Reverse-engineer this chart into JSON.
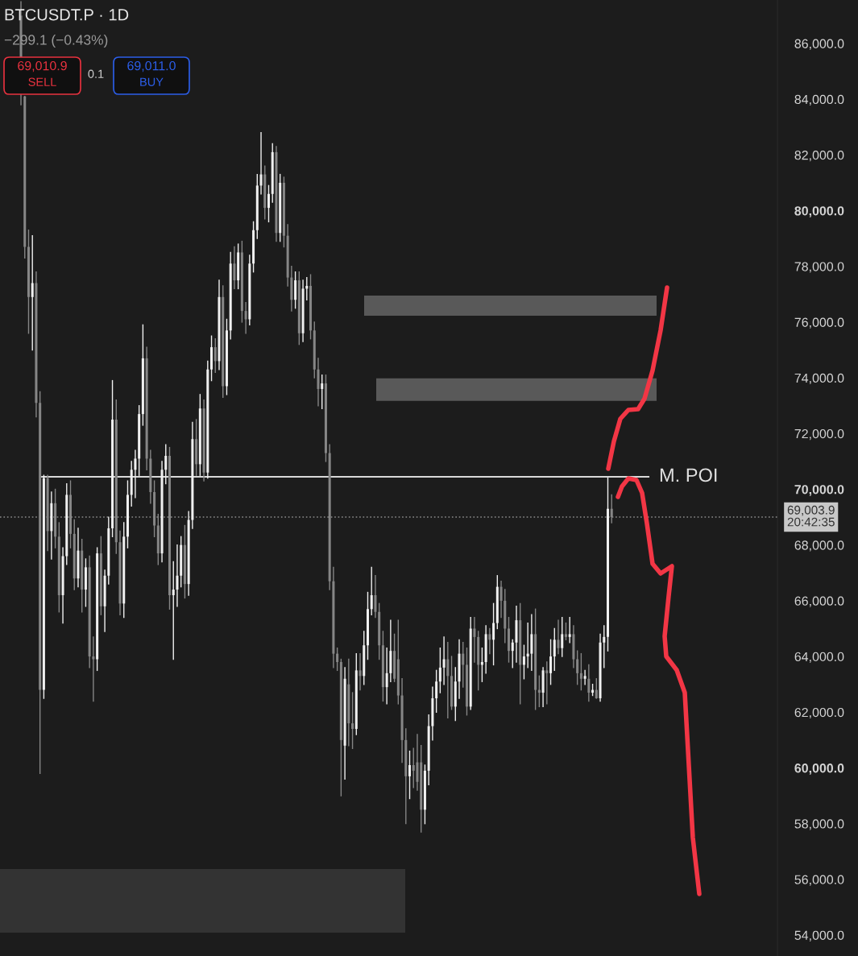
{
  "chart_data": {
    "type": "candlestick",
    "title": "BTCUSDT.P · 1D",
    "subtitle": "−299.1 (−0.43%)",
    "annotations": [
      "69,010.9",
      "SELL",
      "0.1",
      "69,011.0",
      "BUY"
    ],
    "categories": [
      null,
      null,
      null,
      null,
      null,
      null,
      null,
      null,
      null,
      null,
      null,
      null,
      null,
      null,
      null,
      null,
      null,
      null,
      null,
      null,
      null,
      null,
      null,
      null,
      null,
      null,
      null,
      null,
      null,
      null,
      null,
      null,
      null,
      null,
      null,
      null,
      null,
      null,
      null,
      null,
      null,
      null,
      null,
      null,
      null,
      null,
      null,
      null,
      null,
      null,
      null,
      null,
      null,
      null,
      null,
      null,
      null,
      null,
      null,
      null,
      null,
      null,
      null,
      null,
      null,
      null,
      null,
      null,
      null,
      null,
      null,
      null,
      null,
      null,
      null,
      null,
      null,
      null,
      null,
      null,
      null,
      null,
      null,
      null,
      null,
      null,
      null,
      null,
      null,
      null,
      null,
      null,
      null,
      null,
      null,
      null,
      null,
      null,
      null,
      null,
      null,
      null,
      null,
      null,
      null,
      null,
      null,
      null,
      null,
      null,
      null,
      null,
      null,
      null,
      null,
      null,
      null,
      null,
      null,
      null,
      null,
      null,
      null,
      null,
      null,
      null,
      null,
      null,
      null,
      null,
      null,
      null,
      null,
      null,
      null,
      null,
      null,
      null,
      null,
      null,
      null,
      null,
      null,
      null,
      null,
      null,
      null,
      null,
      null,
      null,
      null,
      null,
      null,
      null,
      null,
      null,
      null,
      null,
      null,
      null,
      null,
      null,
      null,
      null,
      null,
      null,
      null,
      null,
      null,
      null,
      null,
      null,
      null,
      null,
      null,
      null,
      null,
      null,
      null,
      null,
      null,
      null,
      null,
      null,
      null,
      null,
      null,
      null,
      null,
      null,
      null,
      null,
      null,
      null,
      null,
      null,
      null,
      null,
      null,
      null,
      null,
      null,
      null,
      null
    ],
    "colors": [
      null,
      null,
      null,
      null,
      null,
      "#868686",
      "#868686",
      "#868686",
      "#f0f0f0",
      "#868686",
      "#868686",
      "#f0f0f0",
      "#868686",
      "#f0f0f0",
      "#868686",
      "#868686",
      "#f0f0f0",
      "#f0f0f0",
      "#868686",
      "#868686",
      "#f0f0f0",
      "#868686",
      "#f0f0f0",
      "#868686",
      "#868686",
      "#f0f0f0",
      "#868686",
      "#f0f0f0",
      "#f0f0f0",
      "#f0f0f0",
      "#868686",
      "#868686",
      "#f0f0f0",
      "#f0f0f0",
      "#f0f0f0",
      "#f0f0f0",
      "#f0f0f0",
      "#f0f0f0",
      "#868686",
      "#868686",
      "#868686",
      "#868686",
      "#f0f0f0",
      "#f0f0f0",
      "#868686",
      "#f0f0f0",
      "#f0f0f0",
      "#f0f0f0",
      "#868686",
      "#f0f0f0",
      "#f0f0f0",
      "#868686",
      "#f0f0f0",
      "#868686",
      "#f0f0f0",
      "#f0f0f0",
      "#868686",
      "#f0f0f0",
      "#868686",
      "#f0f0f0",
      "#f0f0f0",
      "#868686",
      "#f0f0f0",
      "#868686",
      "#868686",
      "#f0f0f0",
      "#f0f0f0",
      "#f0f0f0",
      "#f0f0f0",
      "#868686",
      "#f0f0f0",
      "#f0f0f0",
      "#868686",
      "#f0f0f0",
      "#868686",
      "#868686",
      "#868686",
      "#f0f0f0",
      "#868686",
      "#f0f0f0",
      "#f0f0f0",
      "#868686",
      "#868686",
      "#868686",
      "#f0f0f0",
      "#868686",
      "#868686",
      "#868686",
      "#868686",
      "#868686",
      "#f0f0f0",
      "#868686",
      "#868686",
      "#f0f0f0",
      "#868686",
      "#f0f0f0",
      "#f0f0f0",
      "#f0f0f0",
      "#868686",
      "#868686",
      "#868686",
      "#f0f0f0",
      "#f0f0f0",
      "#868686",
      "#868686",
      "#868686",
      "#868686",
      "#f0f0f0",
      "#868686",
      "#868686",
      "#868686",
      "#f0f0f0",
      "#f0f0f0",
      "#f0f0f0",
      "#f0f0f0",
      "#f0f0f0",
      "#f0f0f0",
      "#868686",
      "#868686",
      "#f0f0f0",
      "#f0f0f0",
      "#868686",
      "#868686",
      "#f0f0f0",
      "#868686",
      "#868686",
      "#f0f0f0",
      "#f0f0f0",
      "#868686",
      "#f0f0f0",
      "#f0f0f0",
      "#868686",
      "#868686",
      "#868686",
      "#f0f0f0",
      "#f0f0f0",
      "#868686",
      "#f0f0f0",
      "#f0f0f0",
      "#f0f0f0",
      "#868686",
      "#868686",
      "#f0f0f0",
      "#868686",
      "#f0f0f0",
      "#f0f0f0",
      "#868686",
      "#f0f0f0",
      "#868686",
      "#f0f0f0",
      "#868686",
      "#868686",
      "#868686",
      "#f0f0f0",
      "#868686",
      "#f0f0f0",
      "#868686",
      "#f0f0f0",
      "#f0f0f0",
      "#f0f0f0",
      "#868686",
      null,
      null,
      null,
      null,
      null,
      null,
      null,
      null,
      null,
      null,
      null,
      null,
      null,
      null,
      null,
      null,
      null,
      null,
      null,
      null,
      null,
      null,
      null,
      null,
      null,
      null,
      null,
      null,
      null,
      null,
      null,
      null,
      null,
      null,
      null,
      null,
      null,
      null,
      null,
      null,
      null,
      null,
      null
    ],
    "ohlc": [
      null,
      null,
      null,
      null,
      null,
      [
        87000,
        87500,
        83800,
        84200
      ],
      [
        84100,
        84100,
        78300,
        78700
      ],
      [
        78700,
        79300,
        75600,
        76900
      ],
      [
        76900,
        79100,
        75000,
        77400
      ],
      [
        77400,
        77800,
        72600,
        73100
      ],
      [
        73100,
        73500,
        59800,
        62800
      ],
      [
        62800,
        70500,
        62500,
        70400
      ],
      [
        70400,
        70500,
        67800,
        68500
      ],
      [
        68500,
        69900,
        67500,
        69500
      ],
      [
        69500,
        70000,
        67900,
        68300
      ],
      [
        68300,
        68800,
        65600,
        66200
      ],
      [
        66200,
        67900,
        65200,
        67600
      ],
      [
        67600,
        70200,
        67300,
        69800
      ],
      [
        69800,
        70300,
        67900,
        68400
      ],
      [
        68400,
        68900,
        66400,
        66800
      ],
      [
        66800,
        68600,
        66500,
        67800
      ],
      [
        67800,
        68200,
        65600,
        66400
      ],
      [
        66400,
        67500,
        65800,
        67200
      ],
      [
        67200,
        67600,
        63600,
        64000
      ],
      [
        64000,
        64700,
        62400,
        63900
      ],
      [
        63900,
        67900,
        63500,
        67700
      ],
      [
        67700,
        68300,
        65500,
        65800
      ],
      [
        65800,
        67100,
        64900,
        66900
      ],
      [
        66900,
        69000,
        66600,
        68600
      ],
      [
        68600,
        73900,
        68300,
        72500
      ],
      [
        72500,
        73200,
        67700,
        68100
      ],
      [
        68100,
        68500,
        65500,
        65900
      ],
      [
        65900,
        68800,
        65400,
        68300
      ],
      [
        68300,
        70300,
        67900,
        69800
      ],
      [
        69800,
        71000,
        69400,
        70700
      ],
      [
        70700,
        71400,
        69700,
        71100
      ],
      [
        71100,
        73000,
        70500,
        72700
      ],
      [
        72700,
        75900,
        72300,
        74700
      ],
      [
        74700,
        75100,
        70700,
        71100
      ],
      [
        71100,
        71400,
        69500,
        69900
      ],
      [
        69900,
        70300,
        68300,
        68700
      ],
      [
        68700,
        69100,
        67300,
        67700
      ],
      [
        67700,
        71000,
        67400,
        70700
      ],
      [
        70700,
        71600,
        70200,
        71200
      ],
      [
        71200,
        71500,
        65700,
        66200
      ],
      [
        66200,
        67400,
        63900,
        66400
      ],
      [
        66400,
        68000,
        65800,
        66900
      ],
      [
        66900,
        68300,
        66500,
        68000
      ],
      [
        68000,
        68700,
        66100,
        66600
      ],
      [
        66600,
        69200,
        66200,
        68900
      ],
      [
        68900,
        72400,
        68600,
        71800
      ],
      [
        71800,
        72500,
        70500,
        70900
      ],
      [
        70900,
        73400,
        70500,
        72900
      ],
      [
        72900,
        73200,
        70300,
        70600
      ],
      [
        70600,
        74600,
        70400,
        74300
      ],
      [
        74300,
        75500,
        73900,
        75100
      ],
      [
        75100,
        75400,
        74200,
        74600
      ],
      [
        74600,
        77500,
        74300,
        76900
      ],
      [
        76900,
        77300,
        73300,
        73700
      ],
      [
        73700,
        76100,
        73400,
        75700
      ],
      [
        75700,
        78500,
        75400,
        78100
      ],
      [
        78100,
        78700,
        77200,
        77500
      ],
      [
        77500,
        78800,
        77200,
        78500
      ],
      [
        78500,
        78900,
        76000,
        76400
      ],
      [
        76400,
        76700,
        75600,
        76100
      ],
      [
        76100,
        78400,
        75900,
        78100
      ],
      [
        78100,
        79600,
        77800,
        79300
      ],
      [
        79300,
        81300,
        79000,
        80900
      ],
      [
        80900,
        82800,
        80600,
        81300
      ],
      [
        81300,
        81600,
        79700,
        80100
      ],
      [
        80100,
        80900,
        79600,
        80600
      ],
      [
        80600,
        82400,
        80300,
        82100
      ],
      [
        82100,
        82300,
        78900,
        79200
      ],
      [
        79200,
        81300,
        78900,
        81000
      ],
      [
        81000,
        81200,
        78700,
        79100
      ],
      [
        79100,
        79500,
        77300,
        77600
      ],
      [
        77600,
        78000,
        76400,
        76800
      ],
      [
        76800,
        77800,
        76500,
        77500
      ],
      [
        77500,
        77800,
        75200,
        75600
      ],
      [
        75600,
        77500,
        75300,
        77200
      ],
      [
        77200,
        77600,
        76800,
        77300
      ],
      [
        77300,
        77700,
        75400,
        75700
      ],
      [
        75700,
        76000,
        74000,
        74300
      ],
      [
        74300,
        74700,
        73000,
        73600
      ],
      [
        73600,
        74100,
        72900,
        73800
      ],
      [
        73800,
        74100,
        71000,
        71300
      ],
      [
        71300,
        71600,
        66400,
        66700
      ],
      [
        66700,
        67200,
        63600,
        64100
      ],
      [
        64100,
        64300,
        63500,
        63800
      ],
      [
        63800,
        63900,
        59000,
        61000
      ],
      [
        60800,
        63600,
        59600,
        63200
      ],
      [
        63000,
        63900,
        60800,
        61600
      ],
      [
        61600,
        62700,
        60700,
        61400
      ],
      [
        61400,
        64100,
        61200,
        63500
      ],
      [
        63500,
        64100,
        62800,
        63300
      ],
      [
        63300,
        64900,
        63000,
        64400
      ],
      [
        64400,
        66300,
        63900,
        65700
      ],
      [
        65700,
        67200,
        65500,
        66200
      ],
      [
        66200,
        66900,
        65400,
        65600
      ],
      [
        65600,
        65900,
        63900,
        64400
      ],
      [
        64400,
        64900,
        62400,
        62900
      ],
      [
        62900,
        64300,
        62300,
        63400
      ],
      [
        63400,
        65300,
        63100,
        64200
      ],
      [
        64200,
        64800,
        63100,
        63200
      ],
      [
        63900,
        65300,
        62300,
        62600
      ],
      [
        62600,
        63200,
        60200,
        61000
      ],
      [
        61000,
        61400,
        58000,
        59700
      ],
      [
        59700,
        60600,
        58900,
        60100
      ],
      [
        60100,
        60700,
        59300,
        59900
      ],
      [
        60200,
        61200,
        59200,
        59500
      ],
      [
        60200,
        60800,
        57700,
        58500
      ],
      [
        58500,
        60100,
        58000,
        59900
      ],
      [
        59900,
        61900,
        59400,
        61500
      ],
      [
        61500,
        62900,
        61000,
        62500
      ],
      [
        62500,
        63500,
        62000,
        63100
      ],
      [
        63100,
        64300,
        62700,
        63600
      ],
      [
        63600,
        64700,
        63000,
        63900
      ],
      [
        63900,
        64500,
        61800,
        63300
      ],
      [
        63300,
        64000,
        62100,
        62200
      ],
      [
        62200,
        63600,
        61700,
        63100
      ],
      [
        63100,
        64600,
        62500,
        64100
      ],
      [
        64100,
        64500,
        62900,
        63700
      ],
      [
        63700,
        64300,
        61900,
        62200
      ],
      [
        62200,
        65400,
        62100,
        65000
      ],
      [
        65000,
        65400,
        63800,
        64700
      ],
      [
        64700,
        64900,
        62800,
        63700
      ],
      [
        63700,
        64300,
        63100,
        63800
      ],
      [
        63800,
        65100,
        63400,
        64800
      ],
      [
        64800,
        65000,
        64100,
        64600
      ],
      [
        64600,
        65900,
        63700,
        65200
      ],
      [
        65200,
        66900,
        65000,
        66500
      ],
      [
        66500,
        66700,
        65400,
        66000
      ],
      [
        66000,
        66400,
        64500,
        65000
      ],
      [
        65000,
        65400,
        63800,
        64200
      ],
      [
        64200,
        64600,
        63600,
        64500
      ],
      [
        64500,
        65800,
        63800,
        65300
      ],
      [
        65300,
        65900,
        62300,
        63700
      ],
      [
        63700,
        64400,
        63200,
        64000
      ],
      [
        64000,
        65200,
        63600,
        64100
      ],
      [
        64100,
        65500,
        63500,
        64800
      ],
      [
        64800,
        65700,
        62100,
        62800
      ],
      [
        62800,
        63300,
        62200,
        62700
      ],
      [
        62700,
        63600,
        62200,
        63500
      ],
      [
        63500,
        63800,
        62300,
        63400
      ],
      [
        63400,
        64600,
        63000,
        64000
      ],
      [
        64000,
        65000,
        63500,
        64600
      ],
      [
        64600,
        65300,
        64100,
        64300
      ],
      [
        64300,
        65400,
        64000,
        64800
      ],
      [
        64800,
        65200,
        64600,
        64700
      ],
      [
        64700,
        65400,
        64500,
        64800
      ],
      [
        64800,
        65100,
        63600,
        63900
      ],
      [
        63900,
        64200,
        63000,
        63400
      ],
      [
        63400,
        64100,
        62800,
        63200
      ],
      [
        63200,
        63500,
        63000,
        63300
      ],
      [
        63200,
        63700,
        62400,
        62700
      ],
      [
        62700,
        63000,
        62600,
        62800
      ],
      [
        62800,
        63200,
        62500,
        62500
      ],
      [
        62500,
        64800,
        62400,
        64500
      ],
      [
        64500,
        65100,
        63600,
        64700
      ],
      [
        64700,
        70400,
        64200,
        69300
      ],
      [
        69300,
        69800,
        68800,
        69000
      ],
      null,
      null,
      null,
      null,
      null,
      null,
      null,
      null,
      null,
      null,
      null,
      null,
      null,
      null,
      null,
      null,
      null,
      null,
      null,
      null,
      null,
      null,
      null,
      null,
      null,
      null,
      null,
      null,
      null,
      null,
      null,
      null,
      null,
      null,
      null,
      null,
      null,
      null,
      null,
      null,
      null,
      null,
      null
    ],
    "ylim": [
      53250,
      87560
    ],
    "yticks": [
      {
        "value": 54000,
        "label": "54,000.0"
      },
      {
        "value": 56000,
        "label": "56,000.0"
      },
      {
        "value": 58000,
        "label": "58,000.0"
      },
      {
        "value": 60000,
        "label": "60,000.0"
      },
      {
        "value": 62000,
        "label": "62,000.0"
      },
      {
        "value": 64000,
        "label": "64,000.0"
      },
      {
        "value": 66000,
        "label": "66,000.0"
      },
      {
        "value": 68000,
        "label": "68,000.0"
      },
      {
        "value": 70000,
        "label": "70,000.0"
      },
      {
        "value": 72000,
        "label": "72,000.0"
      },
      {
        "value": 74000,
        "label": "74,000.0"
      },
      {
        "value": 76000,
        "label": "76,000.0"
      },
      {
        "value": 78000,
        "label": "78,000.0"
      },
      {
        "value": 80000,
        "label": "80,000.0"
      },
      {
        "value": 82000,
        "label": "82,000.0"
      },
      {
        "value": 84000,
        "label": "84,000.0"
      },
      {
        "value": 86000,
        "label": "86,000.0"
      }
    ],
    "tick_labels": "y",
    "ref_lines": [
      {
        "axis": "y",
        "value": 70450,
        "label": "M. POI",
        "color": "#d9d9d9",
        "line_style": "solid"
      },
      {
        "axis": "y",
        "value": 69003.9,
        "label": "69,003.9\n20:42:35",
        "color": "#8a8a8a",
        "line_style": "dotted"
      }
    ],
    "bands": [
      {
        "axis": "y",
        "from": 76230,
        "to": 76950,
        "color": "#595959"
      },
      {
        "axis": "y",
        "from": 73170,
        "to": 73980,
        "color": "#595959"
      }
    ]
  }
}
